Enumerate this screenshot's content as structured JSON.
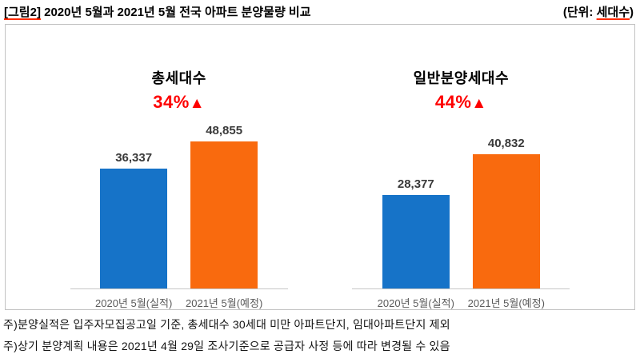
{
  "header": {
    "title_tag": "[그림2]",
    "title_rest": "2020년 5월과 2021년 5월 전국 아파트 분양물량 비교",
    "unit_prefix": "(단위:",
    "unit_word": "세대수",
    "unit_suffix": ")"
  },
  "chart_data": {
    "type": "bar",
    "ymax": 50000,
    "ylim": [
      0,
      50000
    ],
    "grid": false,
    "legend": false,
    "categories": [
      "2020년 5월(실적)",
      "2021년 5월(예정)"
    ],
    "series_colors": {
      "actual_2020": "#1673c8",
      "planned_2021": "#f96a0e"
    },
    "groups": [
      {
        "label": "총세대수",
        "change": "34%",
        "arrow": "▲",
        "bars": [
          {
            "category": "2020년 5월(실적)",
            "value": 36337,
            "display": "36,337",
            "color": "#1673c8"
          },
          {
            "category": "2021년 5월(예정)",
            "value": 48855,
            "display": "48,855",
            "color": "#f96a0e"
          }
        ]
      },
      {
        "label": "일반분양세대수",
        "change": "44%",
        "arrow": "▲",
        "bars": [
          {
            "category": "2020년 5월(실적)",
            "value": 28377,
            "display": "28,377",
            "color": "#1673c8"
          },
          {
            "category": "2021년 5월(예정)",
            "value": 40832,
            "display": "40,832",
            "color": "#f96a0e"
          }
        ]
      }
    ]
  },
  "notes": [
    "주)분양실적은 입주자모집공고일 기준, 총세대수 30세대 미만 아파트단지, 임대아파트단지 제외",
    "주)상기 분양계획 내용은 2021년 4월 29일 조사기준으로 공급자 사정 등에 따라 변경될 수 있음"
  ]
}
